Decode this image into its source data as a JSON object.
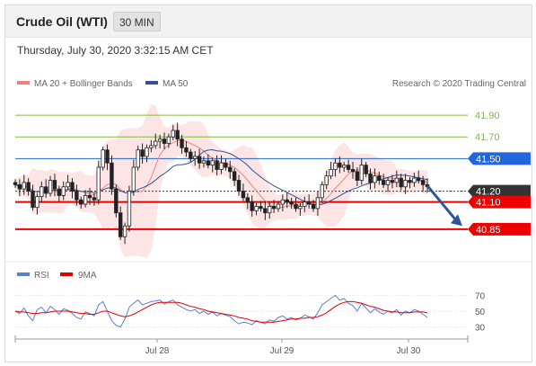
{
  "header": {
    "title": "Crude Oil (WTI)",
    "interval": "30 MIN",
    "timestamp": "Thursday, July 30, 2020 3:32:15 AM CET"
  },
  "legend": {
    "bollinger": {
      "label": "MA 20 + Bollinger Bands",
      "color": "#f08080"
    },
    "ma50": {
      "label": "MA 50",
      "color": "#2f5597"
    },
    "credit": "Research © 2020 Trading Central"
  },
  "rsi_legend": {
    "rsi": {
      "label": "RSI",
      "color": "#5b7fd6"
    },
    "ma9": {
      "label": "9MA",
      "color": "#e00000"
    }
  },
  "chart_data": [
    {
      "type": "candlestick",
      "title": "",
      "ylim": [
        40.6,
        42.05
      ],
      "x_labels": [
        "Jul 28",
        "Jul 29",
        "Jul 30"
      ],
      "levels": [
        {
          "value": 41.9,
          "label": "41.90",
          "color": "#7dbb3a",
          "style": "text"
        },
        {
          "value": 41.7,
          "label": "41.70",
          "color": "#7dbb3a",
          "style": "text"
        },
        {
          "value": 41.5,
          "label": "41.50",
          "color": "#2266dd",
          "style": "box"
        },
        {
          "value": 41.2,
          "label": "41.20",
          "color": "#333333",
          "style": "box"
        },
        {
          "value": 41.1,
          "label": "41.10",
          "color": "#ee0000",
          "style": "box"
        },
        {
          "value": 40.85,
          "label": "40.85",
          "color": "#ee0000",
          "style": "box"
        }
      ],
      "last_price": 41.2,
      "forecast_arrow": {
        "from": 41.25,
        "to": 40.88
      },
      "close_path": [
        41.26,
        41.22,
        41.28,
        41.2,
        41.05,
        41.15,
        41.24,
        41.18,
        41.3,
        41.22,
        41.16,
        41.24,
        41.28,
        41.2,
        41.12,
        41.08,
        41.16,
        41.14,
        41.12,
        41.42,
        41.58,
        41.46,
        41.22,
        41.0,
        40.78,
        40.88,
        41.2,
        41.42,
        41.58,
        41.52,
        41.6,
        41.62,
        41.66,
        41.68,
        41.64,
        41.7,
        41.76,
        41.68,
        41.6,
        41.56,
        41.5,
        41.52,
        41.46,
        41.48,
        41.44,
        41.48,
        41.4,
        41.46,
        41.42,
        41.38,
        41.3,
        41.2,
        41.14,
        41.1,
        41.02,
        41.06,
        41.04,
        41.0,
        41.06,
        41.04,
        41.08,
        41.12,
        41.1,
        41.08,
        41.04,
        41.06,
        41.1,
        41.08,
        41.04,
        41.14,
        41.26,
        41.34,
        41.4,
        41.46,
        41.42,
        41.44,
        41.4,
        41.38,
        41.3,
        41.44,
        41.36,
        41.28,
        41.34,
        41.3,
        41.26,
        41.3,
        41.28,
        41.32,
        41.24,
        41.3,
        41.28,
        41.32,
        41.3,
        41.26,
        41.24
      ]
    },
    {
      "type": "line",
      "title": "",
      "ylim": [
        25,
        75
      ],
      "y_ticks": [
        70,
        50,
        30
      ],
      "series": [
        {
          "name": "RSI",
          "color": "#5b7fd6",
          "values": [
            50,
            47,
            54,
            44,
            38,
            52,
            55,
            48,
            56,
            52,
            46,
            53,
            51,
            47,
            42,
            40,
            49,
            47,
            44,
            58,
            62,
            50,
            38,
            32,
            30,
            40,
            55,
            60,
            64,
            58,
            60,
            62,
            63,
            64,
            59,
            62,
            64,
            58,
            55,
            52,
            50,
            52,
            47,
            50,
            46,
            49,
            44,
            47,
            45,
            43,
            38,
            34,
            36,
            35,
            33,
            38,
            36,
            34,
            39,
            37,
            42,
            44,
            40,
            42,
            39,
            41,
            45,
            43,
            40,
            48,
            58,
            62,
            66,
            70,
            64,
            66,
            60,
            57,
            50,
            60,
            54,
            48,
            53,
            49,
            46,
            50,
            48,
            52,
            45,
            50,
            48,
            52,
            50,
            46,
            42
          ]
        },
        {
          "name": "9MA",
          "color": "#e00000",
          "values": [
            50,
            49,
            49,
            48,
            47,
            47,
            48,
            48,
            49,
            50,
            50,
            50,
            50,
            49,
            48,
            47,
            47,
            46,
            46,
            48,
            50,
            50,
            48,
            46,
            44,
            43,
            44,
            46,
            49,
            52,
            55,
            58,
            60,
            61,
            61,
            61,
            61,
            61,
            60,
            58,
            56,
            55,
            53,
            52,
            50,
            49,
            48,
            47,
            46,
            45,
            44,
            42,
            41,
            40,
            38,
            37,
            36,
            36,
            36,
            36,
            37,
            38,
            39,
            40,
            40,
            41,
            41,
            42,
            42,
            43,
            45,
            48,
            52,
            56,
            59,
            61,
            62,
            62,
            61,
            60,
            58,
            56,
            55,
            53,
            51,
            50,
            49,
            49,
            48,
            48,
            48,
            49,
            49,
            49,
            48
          ]
        }
      ]
    }
  ]
}
